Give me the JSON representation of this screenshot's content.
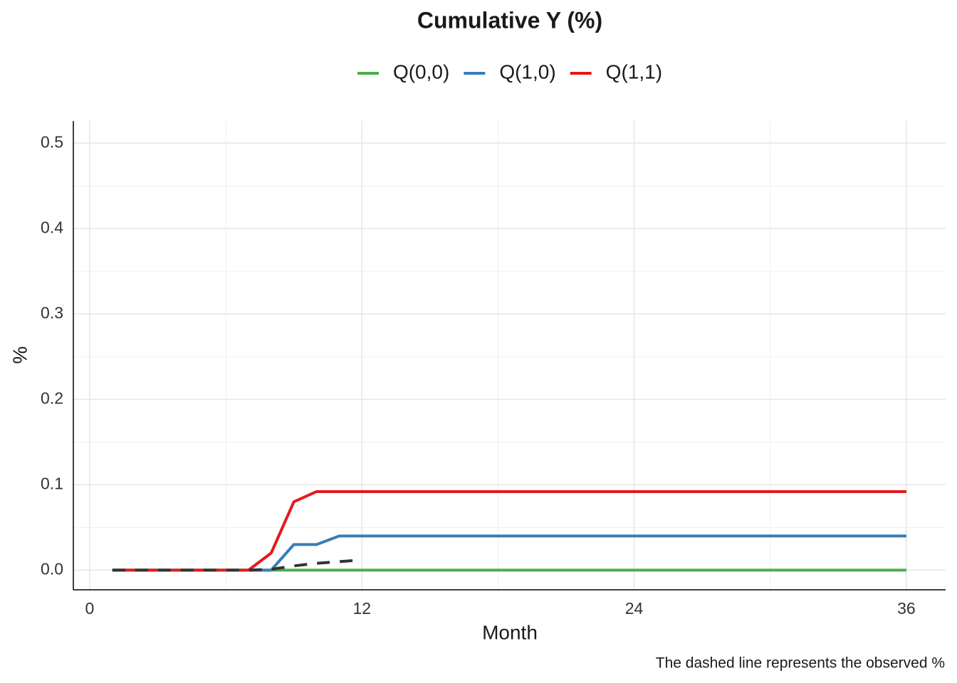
{
  "chart_data": {
    "type": "line",
    "title": "Cumulative Y (%)",
    "x_label": "Month",
    "y_label": "%",
    "caption": "The dashed line represents the observed %",
    "x": [
      1,
      2,
      3,
      4,
      5,
      6,
      7,
      8,
      9,
      10,
      11,
      12,
      13,
      14,
      15,
      16,
      17,
      18,
      19,
      20,
      21,
      22,
      23,
      24,
      25,
      26,
      27,
      28,
      29,
      30,
      31,
      32,
      33,
      34,
      35,
      36
    ],
    "series": [
      {
        "name": "Q(0,0)",
        "color": "#4daf4a",
        "values": [
          0,
          0,
          0,
          0,
          0,
          0,
          0,
          0,
          0,
          0,
          0,
          0,
          0,
          0,
          0,
          0,
          0,
          0,
          0,
          0,
          0,
          0,
          0,
          0,
          0,
          0,
          0,
          0,
          0,
          0,
          0,
          0,
          0,
          0,
          0,
          0
        ]
      },
      {
        "name": "Q(1,0)",
        "color": "#377eb8",
        "values": [
          0,
          0,
          0,
          0,
          0,
          0,
          0,
          0,
          0.03,
          0.03,
          0.04,
          0.04,
          0.04,
          0.04,
          0.04,
          0.04,
          0.04,
          0.04,
          0.04,
          0.04,
          0.04,
          0.04,
          0.04,
          0.04,
          0.04,
          0.04,
          0.04,
          0.04,
          0.04,
          0.04,
          0.04,
          0.04,
          0.04,
          0.04,
          0.04,
          0.04
        ]
      },
      {
        "name": "Q(1,1)",
        "color": "#e41a1c",
        "values": [
          0,
          0,
          0,
          0,
          0,
          0,
          0,
          0.02,
          0.08,
          0.092,
          0.092,
          0.092,
          0.092,
          0.092,
          0.092,
          0.092,
          0.092,
          0.092,
          0.092,
          0.092,
          0.092,
          0.092,
          0.092,
          0.092,
          0.092,
          0.092,
          0.092,
          0.092,
          0.092,
          0.092,
          0.092,
          0.092,
          0.092,
          0.092,
          0.092,
          0.092
        ]
      },
      {
        "color": "#333333",
        "dashed": true,
        "values": [
          0,
          0,
          0,
          0,
          0,
          0,
          0,
          0.001,
          0.005,
          0.008,
          0.01,
          0.012,
          null,
          null,
          null,
          null,
          null,
          null,
          null,
          null,
          null,
          null,
          null,
          null,
          null,
          null,
          null,
          null,
          null,
          null,
          null,
          null,
          null,
          null,
          null,
          null
        ]
      }
    ],
    "xlim": [
      -0.72,
      37.73
    ],
    "xticks": [
      0,
      12,
      24,
      36
    ],
    "ylim": [
      -0.023,
      0.526
    ],
    "yticks": [
      {
        "value": 0,
        "label": "0.0"
      },
      0.1,
      0.2,
      0.3,
      0.4,
      0.5
    ],
    "grid": true,
    "legend": "top"
  }
}
